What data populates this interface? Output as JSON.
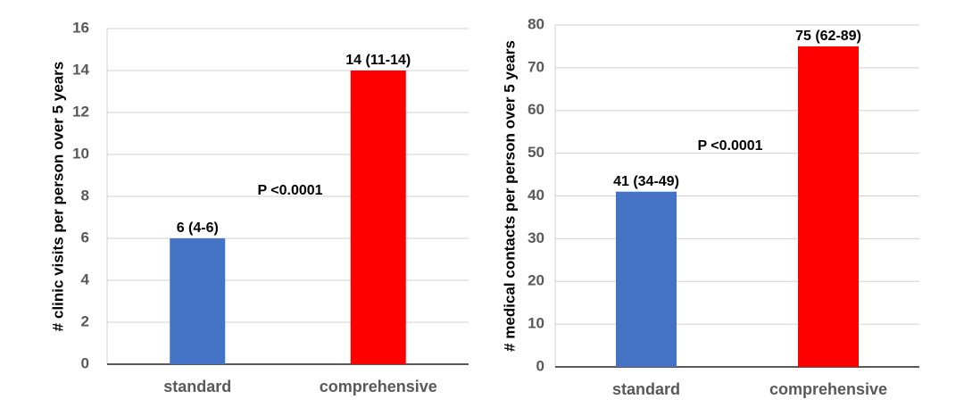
{
  "chart_data": [
    {
      "type": "bar",
      "ylabel": "# clinic visits per person over 5 years",
      "categories": [
        "standard",
        "comprehensive"
      ],
      "values": [
        6,
        14
      ],
      "value_labels": [
        "6 (4-6)",
        "14 (11-14)"
      ],
      "colors": [
        "#4472c4",
        "#ff0000"
      ],
      "ylim": [
        0,
        16
      ],
      "yticks": [
        0,
        2,
        4,
        6,
        8,
        10,
        12,
        14,
        16
      ],
      "grid": true,
      "annotation": "P <0.0001"
    },
    {
      "type": "bar",
      "ylabel": "# medical contacts per person over 5 years",
      "categories": [
        "standard",
        "comprehensive"
      ],
      "values": [
        41,
        75
      ],
      "value_labels": [
        "41 (34-49)",
        "75 (62-89)"
      ],
      "colors": [
        "#4472c4",
        "#ff0000"
      ],
      "ylim": [
        0,
        80
      ],
      "yticks": [
        0,
        10,
        20,
        30,
        40,
        50,
        60,
        70,
        80
      ],
      "grid": true,
      "annotation": "P <0.0001"
    }
  ]
}
